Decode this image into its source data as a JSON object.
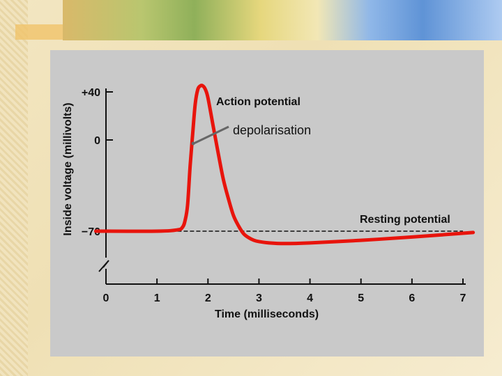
{
  "chart_data": {
    "type": "line",
    "xlabel": "Time (milliseconds)",
    "ylabel": "Inside voltage (millivolts)",
    "x_ticks": [
      "0",
      "1",
      "2",
      "3",
      "4",
      "5",
      "6",
      "7"
    ],
    "y_ticks": [
      {
        "value": 40,
        "label": "+40"
      },
      {
        "value": 0,
        "label": "0"
      },
      {
        "value": -70,
        "label": "−70"
      }
    ],
    "xlim": [
      0,
      7
    ],
    "ylim": [
      -90,
      40
    ],
    "series": [
      {
        "color": "#e8140c",
        "x": [
          -0.2,
          1.0,
          1.4,
          1.5,
          1.55,
          1.6,
          1.65,
          1.7,
          1.75,
          1.8,
          1.85,
          1.9,
          1.95,
          2.0,
          2.1,
          2.2,
          2.3,
          2.4,
          2.5,
          2.6,
          2.7,
          2.8,
          2.9,
          3.0,
          3.2,
          3.5,
          4.0,
          5.0,
          6.0,
          7.2
        ],
        "y": [
          -70,
          -70,
          -69,
          -67,
          -62,
          -50,
          -20,
          5,
          30,
          42,
          45,
          45,
          42,
          35,
          12,
          -10,
          -30,
          -45,
          -58,
          -66,
          -72,
          -75,
          -77,
          -78,
          -79,
          -79.5,
          -79,
          -77,
          -74.5,
          -71
        ]
      }
    ],
    "reference_lines": [
      {
        "y": -70,
        "x_from": 1.4,
        "x_to": 7.0,
        "style": "dashed",
        "color": "#111111"
      }
    ],
    "annotations": [
      {
        "text": "Action potential",
        "style": "bold"
      },
      {
        "text": "depolarisation",
        "style": "plain",
        "pointer_color": "#666666"
      },
      {
        "text": "Resting potential",
        "style": "bold"
      }
    ],
    "axis_break": true,
    "grid": false
  }
}
